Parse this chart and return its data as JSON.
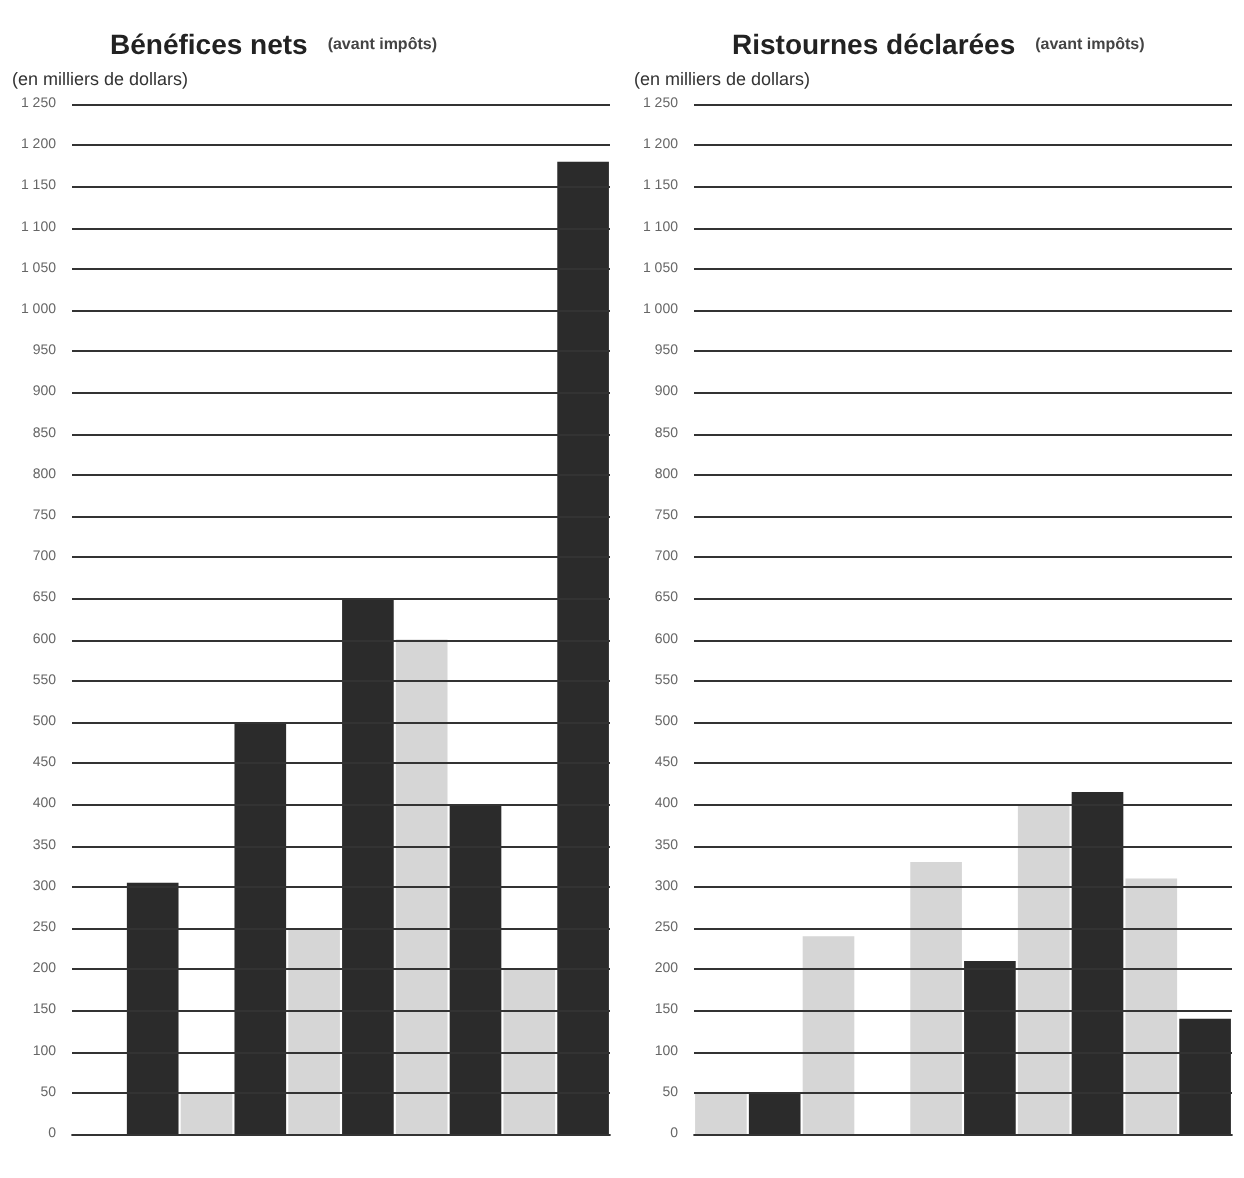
{
  "chart_data": [
    {
      "type": "bar",
      "title": "Bénéfices nets",
      "subtitle": "(avant impôts)",
      "ylabel": "(en milliers de dollars)",
      "categories": [
        null,
        null,
        null,
        null,
        null,
        null,
        null,
        null,
        null,
        null
      ],
      "values": [
        null,
        305,
        50,
        500,
        250,
        650,
        600,
        400,
        200,
        1180
      ],
      "colors": [
        "#d6d6d6",
        "#2b2b2b",
        "#d6d6d6",
        "#2b2b2b",
        "#d6d6d6",
        "#2b2b2b",
        "#d6d6d6",
        "#2b2b2b",
        "#d6d6d6",
        "#2b2b2b"
      ],
      "ylim": [
        0,
        1250
      ],
      "yticks": [
        0,
        50,
        100,
        150,
        200,
        250,
        300,
        350,
        400,
        450,
        500,
        550,
        600,
        650,
        700,
        750,
        800,
        850,
        900,
        950,
        {
          "value": 1000,
          "label": "1 000"
        },
        {
          "value": 1050,
          "label": "1 050"
        },
        {
          "value": 1100,
          "label": "1 100"
        },
        {
          "value": 1150,
          "label": "1 150"
        },
        {
          "value": 1200,
          "label": "1 200"
        },
        {
          "value": 1250,
          "label": "1 250"
        }
      ],
      "grid": "y"
    },
    {
      "type": "bar",
      "title": "Ristournes déclarées",
      "subtitle": "(avant impôts)",
      "ylabel": "(en milliers de dollars)",
      "categories": [
        null,
        null,
        null,
        null,
        null,
        null,
        null,
        null,
        null,
        null
      ],
      "values": [
        50,
        50,
        240,
        0,
        330,
        210,
        400,
        415,
        310,
        140
      ],
      "colors": [
        "#d6d6d6",
        "#2b2b2b",
        "#d6d6d6",
        "#2b2b2b",
        "#d6d6d6",
        "#2b2b2b",
        "#d6d6d6",
        "#2b2b2b",
        "#d6d6d6",
        "#2b2b2b"
      ],
      "ylim": [
        0,
        1250
      ],
      "yticks": [
        0,
        50,
        100,
        150,
        200,
        250,
        300,
        350,
        400,
        450,
        500,
        550,
        600,
        650,
        700,
        750,
        800,
        850,
        900,
        950,
        {
          "value": 1000,
          "label": "1 000"
        },
        {
          "value": 1050,
          "label": "1 050"
        },
        {
          "value": 1100,
          "label": "1 100"
        },
        {
          "value": 1150,
          "label": "1 150"
        },
        {
          "value": 1200,
          "label": "1 200"
        },
        {
          "value": 1250,
          "label": "1 250"
        }
      ],
      "grid": "y"
    }
  ]
}
